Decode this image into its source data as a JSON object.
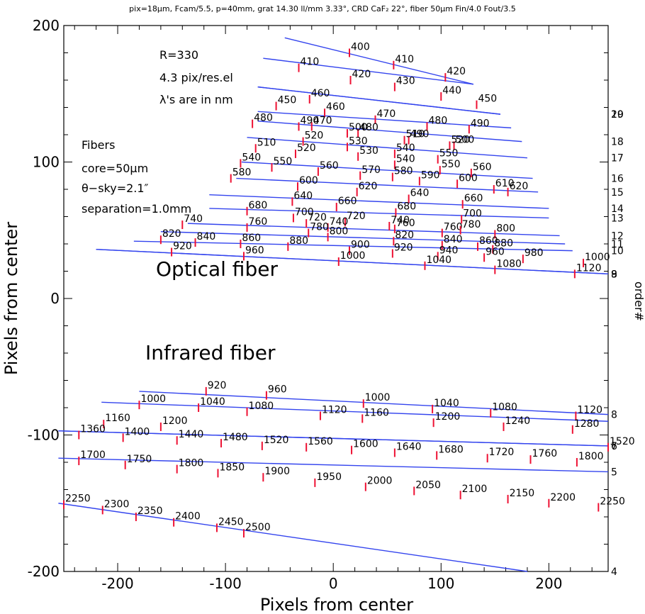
{
  "header": "pix=18µm, Fcam/5.5, p=40mm, grat 14.30 ll/mm 3.33°, CRD CaF₂ 22°, fiber 50µm Fin/4.0 Fout/3.5",
  "axes": {
    "xlabel": "Pixels from center",
    "ylabel": "Pixels from center",
    "right_label": "order#",
    "xlim": [
      -250,
      255
    ],
    "ylim": [
      -200,
      200
    ],
    "xticks": [
      -200,
      -100,
      0,
      100,
      200
    ],
    "yticks": [
      -200,
      -100,
      0,
      100,
      200
    ]
  },
  "notes": {
    "resolution": "R=330",
    "sampling": "4.3 pix/res.el",
    "units": "λ's are in nm",
    "fibers_title": "Fibers",
    "core": "core=50µm",
    "sky": "θ−sky=2.1″",
    "separation": "separation=1.0mm",
    "optical_fiber": "Optical fiber",
    "infrared_fiber": "Infrared fiber"
  },
  "colors": {
    "trace": "#3344ee",
    "tick": "#ee1133"
  },
  "chart_data": {
    "type": "line",
    "groups": [
      {
        "fiber": "Optical fiber",
        "orders": [
          {
            "order": "",
            "line": [
              [
                -45,
                191
              ],
              [
                130,
                157
              ]
            ],
            "wl": [
              [
                400,
                15,
                180
              ],
              [
                410,
                56,
                171
              ],
              [
                420,
                104,
                162
              ]
            ]
          },
          {
            "order": "",
            "line": [
              [
                -65,
                176
              ],
              [
                130,
                157
              ]
            ],
            "wl": [
              [
                410,
                -32,
                169
              ],
              [
                420,
                16,
                160
              ],
              [
                430,
                57,
                155
              ],
              [
                440,
                100,
                148
              ],
              [
                450,
                133,
                142
              ]
            ]
          },
          {
            "order": "20",
            "line": [
              [
                -70,
                155
              ],
              [
                155,
                135
              ]
            ],
            "wl": [
              [
                450,
                -53,
                141
              ],
              [
                460,
                -8,
                136
              ],
              [
                470,
                39,
                131
              ],
              [
                480,
                87,
                126
              ],
              [
                490,
                126,
                124
              ]
            ]
          },
          {
            "order": "19",
            "line": [
              [
                -70,
                155
              ],
              [
                155,
                135
              ]
            ],
            "wl": [
              [
                460,
                -22,
                146
              ],
              [
                470,
                -20,
                126
              ],
              [
                480,
                23,
                121
              ],
              [
                490,
                70,
                116
              ],
              [
                500,
                112,
                112
              ]
            ]
          },
          {
            "order": "",
            "line": [
              [
                -70,
                137
              ],
              [
                165,
                125
              ]
            ],
            "wl": [
              [
                480,
                -75,
                128
              ],
              [
                490,
                -32,
                126
              ],
              [
                500,
                13,
                121
              ],
              [
                510,
                66,
                116
              ],
              [
                520,
                108,
                112
              ]
            ]
          },
          {
            "order": "18",
            "line": [
              [
                -70,
                130
              ],
              [
                175,
                115
              ]
            ],
            "wl": [
              [
                510,
                -72,
                110
              ],
              [
                520,
                -35,
                106
              ],
              [
                530,
                23,
                104
              ],
              [
                540,
                57,
                98
              ],
              [
                550,
                99,
                94
              ],
              [
                560,
                128,
                92
              ]
            ]
          },
          {
            "order": "17",
            "line": [
              [
                -80,
                118
              ],
              [
                180,
                103
              ]
            ],
            "wl": [
              [
                520,
                -28,
                115
              ],
              [
                530,
                13,
                111
              ],
              [
                540,
                57,
                106
              ],
              [
                550,
                97,
                102
              ]
            ]
          },
          {
            "order": "16",
            "line": [
              [
                -85,
                100
              ],
              [
                185,
                88
              ]
            ],
            "wl": [
              [
                540,
                -86,
                99
              ],
              [
                550,
                -57,
                96
              ],
              [
                560,
                -14,
                93
              ],
              [
                570,
                25,
                90
              ],
              [
                580,
                55,
                89
              ],
              [
                590,
                80,
                86
              ],
              [
                600,
                115,
                84
              ],
              [
                610,
                149,
                80
              ],
              [
                620,
                162,
                78
              ]
            ]
          },
          {
            "order": "15",
            "line": [
              [
                -90,
                88
              ],
              [
                190,
                78
              ]
            ],
            "wl": [
              [
                580,
                -95,
                88
              ],
              [
                600,
                -33,
                82
              ],
              [
                620,
                22,
                78
              ],
              [
                640,
                70,
                73
              ],
              [
                660,
                120,
                69
              ]
            ]
          },
          {
            "order": "14",
            "line": [
              [
                -115,
                76
              ],
              [
                200,
                66
              ]
            ],
            "wl": [
              [
                640,
                -38,
                71
              ],
              [
                660,
                3,
                67
              ],
              [
                680,
                58,
                63
              ],
              [
                700,
                119,
                58
              ]
            ]
          },
          {
            "order": "13",
            "line": [
              [
                -115,
                66
              ],
              [
                200,
                59
              ]
            ],
            "wl": [
              [
                680,
                -80,
                64
              ],
              [
                700,
                -37,
                59
              ],
              [
                720,
                11,
                56
              ],
              [
                740,
                52,
                53
              ],
              [
                760,
                101,
                48
              ]
            ]
          },
          {
            "order": "12",
            "line": [
              [
                -135,
                55
              ],
              [
                210,
                46
              ]
            ],
            "wl": [
              [
                720,
                -25,
                55
              ],
              [
                740,
                -5,
                52
              ],
              [
                760,
                57,
                51
              ],
              [
                780,
                118,
                50
              ],
              [
                800,
                150,
                47
              ]
            ]
          },
          {
            "order": "11",
            "line": [
              [
                -160,
                49
              ],
              [
                215,
                40
              ]
            ],
            "wl": [
              [
                740,
                -140,
                54
              ],
              [
                760,
                -80,
                52
              ],
              [
                780,
                -23,
                48
              ],
              [
                800,
                -5,
                45
              ],
              [
                820,
                56,
                42
              ],
              [
                840,
                101,
                39
              ],
              [
                860,
                134,
                38
              ],
              [
                880,
                148,
                36
              ]
            ]
          },
          {
            "order": "10",
            "line": [
              [
                -185,
                42
              ],
              [
                222,
                35
              ]
            ],
            "wl": [
              [
                820,
                -160,
                43
              ],
              [
                840,
                -128,
                41
              ],
              [
                860,
                -86,
                40
              ],
              [
                880,
                -42,
                38
              ],
              [
                900,
                15,
                35
              ],
              [
                920,
                55,
                33
              ],
              [
                940,
                97,
                31
              ],
              [
                960,
                140,
                30
              ]
            ]
          },
          {
            "order": "9",
            "line": [
              [
                -220,
                36
              ],
              [
                255,
                18
              ]
            ],
            "wl": [
              [
                920,
                -150,
                34
              ],
              [
                960,
                -83,
                31
              ],
              [
                1000,
                5,
                27
              ],
              [
                1040,
                85,
                24
              ],
              [
                1080,
                150,
                21
              ],
              [
                1120,
                224,
                18
              ]
            ]
          },
          {
            "order": "8",
            "line": [
              [
                -220,
                36
              ],
              [
                255,
                18
              ]
            ],
            "wl": [
              [
                980,
                176,
                29
              ],
              [
                1000,
                232,
                26
              ]
            ]
          }
        ]
      },
      {
        "fiber": "Infrared fiber",
        "orders": [
          {
            "order": "8",
            "line": [
              [
                -180,
                -68
              ],
              [
                255,
                -85
              ]
            ],
            "wl": [
              [
                920,
                -118,
                -68
              ],
              [
                960,
                -62,
                -71
              ],
              [
                1000,
                28,
                -77
              ],
              [
                1040,
                92,
                -81
              ],
              [
                1080,
                146,
                -84
              ],
              [
                1120,
                225,
                -86
              ]
            ]
          },
          {
            "order": "",
            "line": [
              [
                -215,
                -76
              ],
              [
                255,
                -90
              ]
            ],
            "wl": [
              [
                1000,
                -180,
                -78
              ],
              [
                1040,
                -125,
                -80
              ],
              [
                1080,
                -80,
                -83
              ],
              [
                1120,
                -12,
                -86
              ],
              [
                1160,
                27,
                -88
              ],
              [
                1200,
                93,
                -91
              ],
              [
                1240,
                158,
                -94
              ],
              [
                1280,
                222,
                -96
              ]
            ]
          },
          {
            "order": "7",
            "line": [
              [
                -255,
                -97
              ],
              [
                255,
                -108
              ]
            ],
            "wl": [
              [
                1160,
                -213,
                -92
              ],
              [
                1200,
                -160,
                -94
              ]
            ]
          },
          {
            "order": "6",
            "line": [
              [
                -255,
                -97
              ],
              [
                255,
                -108
              ]
            ],
            "wl": [
              [
                1360,
                -236,
                -100
              ],
              [
                1400,
                -195,
                -102
              ],
              [
                1440,
                -145,
                -104
              ],
              [
                1480,
                -104,
                -106
              ],
              [
                1520,
                -66,
                -108
              ],
              [
                1560,
                -25,
                -109
              ],
              [
                1600,
                17,
                -111
              ],
              [
                1640,
                57,
                -113
              ],
              [
                1680,
                96,
                -115
              ],
              [
                1720,
                143,
                -117
              ],
              [
                1760,
                183,
                -118
              ],
              [
                1800,
                226,
                -120
              ],
              [
                1520,
                255,
                -109
              ]
            ]
          },
          {
            "order": "5",
            "line": [
              [
                -255,
                -117
              ],
              [
                255,
                -127
              ]
            ],
            "wl": [
              [
                1700,
                -236,
                -119
              ],
              [
                1750,
                -193,
                -122
              ],
              [
                1800,
                -145,
                -125
              ],
              [
                1850,
                -107,
                -128
              ],
              [
                1900,
                -65,
                -131
              ],
              [
                1950,
                -17,
                -135
              ],
              [
                2000,
                30,
                -138
              ],
              [
                2050,
                75,
                -141
              ],
              [
                2100,
                118,
                -144
              ],
              [
                2150,
                162,
                -147
              ],
              [
                2200,
                200,
                -150
              ],
              [
                2250,
                246,
                -153
              ]
            ]
          },
          {
            "order": "4",
            "line": [
              [
                -255,
                -150
              ],
              [
                180,
                -200
              ]
            ],
            "wl": [
              [
                2250,
                -250,
                -151
              ],
              [
                2300,
                -214,
                -155
              ],
              [
                2350,
                -183,
                -160
              ],
              [
                2400,
                -148,
                -164
              ],
              [
                2450,
                -108,
                -168
              ],
              [
                2500,
                -83,
                -172
              ]
            ]
          }
        ]
      }
    ]
  }
}
